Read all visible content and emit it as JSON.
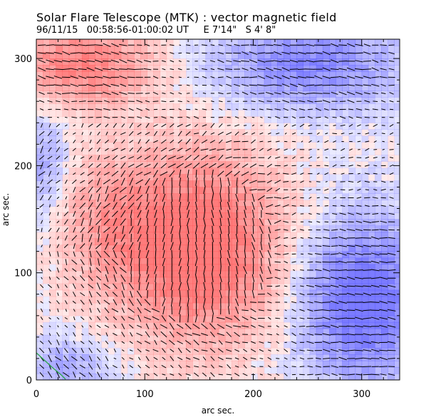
{
  "chart_data": {
    "type": "vector-field",
    "title": "Solar Flare Telescope (MTK) : vector magnetic field",
    "subtitle": "96/11/15   00:58:56-01:00:02 UT     E 7'14\"   S 4' 8\"",
    "xlabel": "arc sec.",
    "ylabel": "arc sec.",
    "xlim": [
      0,
      335
    ],
    "ylim": [
      0,
      318
    ],
    "xticks": [
      0,
      100,
      200,
      300
    ],
    "yticks": [
      0,
      100,
      200,
      300
    ],
    "xtick_labels": [
      "0",
      "100",
      "200",
      "300"
    ],
    "ytick_labels": [
      "0",
      "100",
      "200",
      "300"
    ],
    "colors": {
      "positive": "#ff5a5a",
      "negative": "#5a5aff",
      "vector": "#000000",
      "contour": "#2aa84a"
    },
    "polarity_regions": [
      {
        "name": "positive-core",
        "sign": 1,
        "cx": 150,
        "cy": 125,
        "rx": 80,
        "ry": 90,
        "strength": 1.0
      },
      {
        "name": "positive-top-left",
        "sign": 1,
        "cx": 40,
        "cy": 295,
        "rx": 70,
        "ry": 40,
        "strength": 0.75
      },
      {
        "name": "positive-mid-left",
        "sign": 1,
        "cx": 60,
        "cy": 150,
        "rx": 50,
        "ry": 60,
        "strength": 0.35
      },
      {
        "name": "negative-bottom-right",
        "sign": -1,
        "cx": 300,
        "cy": 75,
        "rx": 60,
        "ry": 80,
        "strength": 0.95
      },
      {
        "name": "negative-top-right",
        "sign": -1,
        "cx": 250,
        "cy": 295,
        "rx": 90,
        "ry": 45,
        "strength": 0.7
      },
      {
        "name": "negative-left-edge",
        "sign": -1,
        "cx": 5,
        "cy": 200,
        "rx": 25,
        "ry": 60,
        "strength": 0.45
      },
      {
        "name": "negative-bottom-left",
        "sign": -1,
        "cx": 30,
        "cy": 15,
        "rx": 45,
        "ry": 25,
        "strength": 0.45
      }
    ],
    "vector_grid_spacing_arcsec": 7.5,
    "vector_max_length_arcsec": 7
  }
}
